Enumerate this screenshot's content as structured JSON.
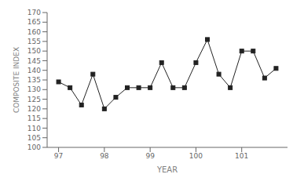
{
  "chart_data": {
    "type": "line",
    "x": [
      97.0,
      97.25,
      97.5,
      97.75,
      98.0,
      98.25,
      98.5,
      98.75,
      99.0,
      99.25,
      99.5,
      99.75,
      100.0,
      100.25,
      100.5,
      100.75,
      101.0,
      101.25,
      101.5,
      101.75
    ],
    "values": [
      134,
      131,
      122,
      138,
      120,
      126,
      131,
      131,
      131,
      144,
      131,
      131,
      144,
      156,
      138,
      131,
      150,
      150,
      136,
      141
    ],
    "xlabel": "YEAR",
    "ylabel": "COMPOSITE INDEX",
    "xlim": [
      96.75,
      102.0
    ],
    "ylim": [
      100,
      170
    ],
    "xticks": [
      97,
      98,
      99,
      100,
      101
    ],
    "yticks": [
      100,
      105,
      110,
      115,
      120,
      125,
      130,
      135,
      140,
      145,
      150,
      155,
      160,
      165,
      170
    ],
    "color": "#222222",
    "marker": "square",
    "grid": false
  }
}
